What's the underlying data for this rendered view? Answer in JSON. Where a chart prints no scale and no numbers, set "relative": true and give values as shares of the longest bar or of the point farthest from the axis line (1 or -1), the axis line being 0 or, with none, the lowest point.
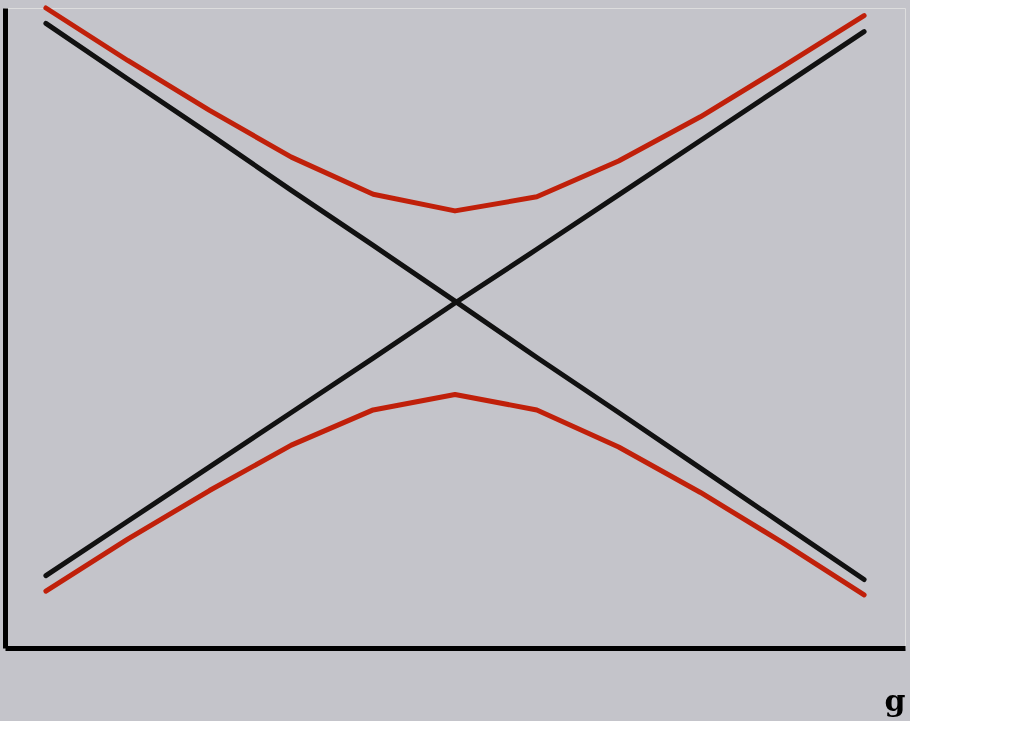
{
  "chart_data": {
    "type": "line",
    "relative": true,
    "xlabel": "g",
    "grid": false,
    "line_style": "solid",
    "tick_labels": false,
    "categories": [
      null,
      null,
      null,
      null,
      null,
      null,
      null,
      null,
      null,
      null,
      null
    ],
    "series": [
      {
        "color": "#111111",
        "values": [
          0.976,
          0.889,
          0.803,
          0.715,
          0.629,
          0.542,
          0.454,
          0.368,
          0.281,
          0.194,
          0.107
        ]
      },
      {
        "color": "#111111",
        "values": [
          0.113,
          0.198,
          0.283,
          0.368,
          0.453,
          0.539,
          0.623,
          0.708,
          0.793,
          0.878,
          0.963
        ]
      },
      {
        "color": "#c0200a",
        "values": [
          1.0,
          0.918,
          0.84,
          0.767,
          0.709,
          0.683,
          0.705,
          0.761,
          0.83,
          0.908,
          0.988
        ]
      },
      {
        "color": "#c0200a",
        "values": [
          0.089,
          0.17,
          0.246,
          0.317,
          0.372,
          0.396,
          0.372,
          0.314,
          0.243,
          0.165,
          0.083
        ]
      }
    ]
  }
}
